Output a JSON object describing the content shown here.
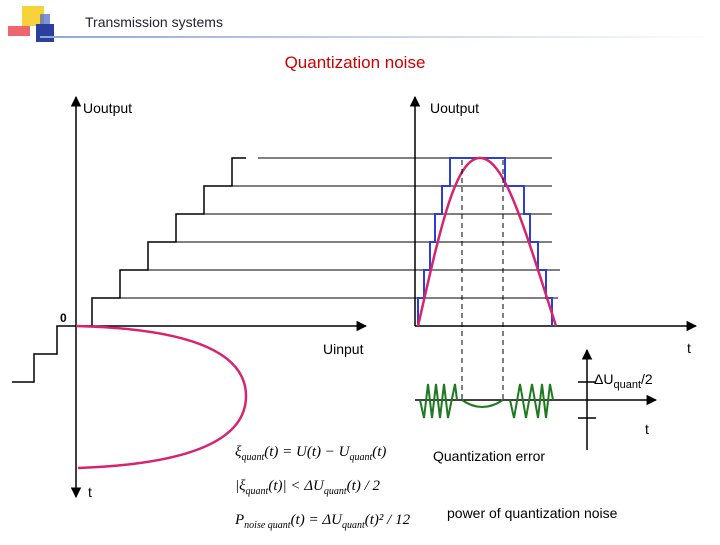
{
  "header": {
    "title": "Transmission systems"
  },
  "title": "Quantization noise",
  "left_plot": {
    "y_label": "Uoutput",
    "origin_label": "0",
    "x_label": "Uinput",
    "t_label": "t"
  },
  "right_plot": {
    "y_label": "Uoutput",
    "t_label": "t"
  },
  "error_plot": {
    "step_label": [
      "ΔU",
      "quant",
      "/2"
    ],
    "t_label": "t",
    "caption": "Quantization error"
  },
  "formulas": [
    [
      "ξ",
      "quant",
      "(t) = U(t) − U",
      "quant",
      "(t)"
    ],
    [
      "|ξ",
      "quant",
      "(t)| < ΔU",
      "quant",
      "(t) / 2"
    ],
    [
      "P",
      "noise  quant",
      "(t) = ΔU",
      "quant",
      "(t)² / 12"
    ]
  ],
  "noise_caption": "power of quantization noise"
}
